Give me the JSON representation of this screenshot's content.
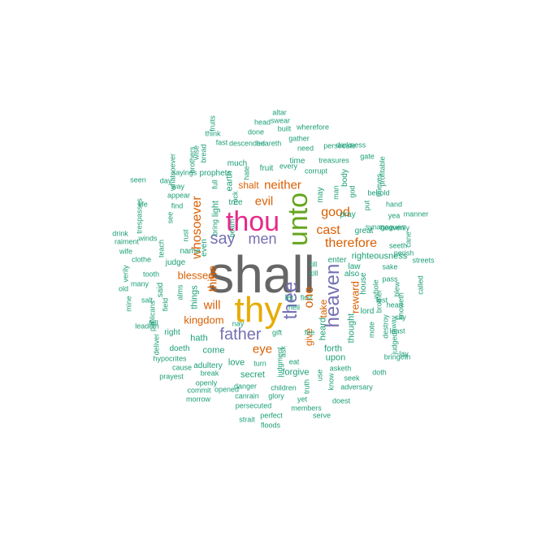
{
  "palette": {
    "c1": "#1b9e77",
    "c2": "#d95f02",
    "c3": "#7570b3",
    "c4": "#e7298a",
    "c5": "#66a61e",
    "c6": "#e6ab02",
    "c7": "#666666"
  },
  "words": [
    {
      "text": "shall",
      "color": "c7",
      "vertical": false
    },
    {
      "text": "thy",
      "color": "c6",
      "vertical": false
    },
    {
      "text": "thou",
      "color": "c4",
      "vertical": false
    },
    {
      "text": "unto",
      "color": "c5",
      "vertical": true
    },
    {
      "text": "thee",
      "color": "c3",
      "vertical": true
    },
    {
      "text": "heaven",
      "color": "c3",
      "vertical": true
    },
    {
      "text": "father",
      "color": "c3",
      "vertical": false
    },
    {
      "text": "say",
      "color": "c3",
      "vertical": false
    },
    {
      "text": "men",
      "color": "c3",
      "vertical": false
    },
    {
      "text": "therefore",
      "color": "c2",
      "vertical": false
    },
    {
      "text": "whosoever",
      "color": "c2",
      "vertical": true
    },
    {
      "text": "one",
      "color": "c2",
      "vertical": true
    },
    {
      "text": "good",
      "color": "c2",
      "vertical": false
    },
    {
      "text": "cast",
      "color": "c2",
      "vertical": false
    },
    {
      "text": "neither",
      "color": "c2",
      "vertical": false
    },
    {
      "text": "evil",
      "color": "c2",
      "vertical": false
    },
    {
      "text": "eye",
      "color": "c2",
      "vertical": false
    },
    {
      "text": "will",
      "color": "c2",
      "vertical": false
    },
    {
      "text": "thine",
      "color": "c2",
      "vertical": true
    },
    {
      "text": "blessed",
      "color": "c2",
      "vertical": false
    },
    {
      "text": "kingdom",
      "color": "c2",
      "vertical": false
    },
    {
      "text": "reward",
      "color": "c2",
      "vertical": true
    },
    {
      "text": "give",
      "color": "c2",
      "vertical": true
    },
    {
      "text": "take",
      "color": "c2",
      "vertical": true
    },
    {
      "text": "shalt",
      "color": "c2",
      "vertical": false
    },
    {
      "text": "forth",
      "color": "c1",
      "vertical": false
    },
    {
      "text": "upon",
      "color": "c1",
      "vertical": false
    },
    {
      "text": "thought",
      "color": "c1",
      "vertical": true
    },
    {
      "text": "heard",
      "color": "c1",
      "vertical": true
    },
    {
      "text": "hath",
      "color": "c1",
      "vertical": false
    },
    {
      "text": "come",
      "color": "c1",
      "vertical": false
    },
    {
      "text": "love",
      "color": "c1",
      "vertical": false
    },
    {
      "text": "secret",
      "color": "c1",
      "vertical": false
    },
    {
      "text": "forgive",
      "color": "c1",
      "vertical": false
    },
    {
      "text": "righteousness",
      "color": "c1",
      "vertical": false
    },
    {
      "text": "things",
      "color": "c1",
      "vertical": true
    },
    {
      "text": "light",
      "color": "c1",
      "vertical": true
    },
    {
      "text": "earth",
      "color": "c1",
      "vertical": true
    },
    {
      "text": "tree",
      "color": "c1",
      "vertical": false
    },
    {
      "text": "fruit",
      "color": "c1",
      "vertical": false
    },
    {
      "text": "time",
      "color": "c1",
      "vertical": false
    },
    {
      "text": "pray",
      "color": "c1",
      "vertical": false
    },
    {
      "text": "great",
      "color": "c1",
      "vertical": false
    },
    {
      "text": "lord",
      "color": "c1",
      "vertical": false
    },
    {
      "text": "let",
      "color": "c1",
      "vertical": false
    },
    {
      "text": "may",
      "color": "c1",
      "vertical": true
    },
    {
      "text": "much",
      "color": "c1",
      "vertical": false
    },
    {
      "text": "prophets",
      "color": "c1",
      "vertical": false
    },
    {
      "text": "judge",
      "color": "c1",
      "vertical": false
    },
    {
      "text": "name",
      "color": "c1",
      "vertical": false
    },
    {
      "text": "even",
      "color": "c1",
      "vertical": true
    },
    {
      "text": "said",
      "color": "c1",
      "vertical": true
    },
    {
      "text": "right",
      "color": "c1",
      "vertical": false
    },
    {
      "text": "doeth",
      "color": "c1",
      "vertical": false
    },
    {
      "text": "adultery",
      "color": "c1",
      "vertical": false
    },
    {
      "text": "enter",
      "color": "c1",
      "vertical": false
    },
    {
      "text": "law",
      "color": "c1",
      "vertical": false
    },
    {
      "text": "also",
      "color": "c1",
      "vertical": false
    },
    {
      "text": "house",
      "color": "c1",
      "vertical": true
    },
    {
      "text": "body",
      "color": "c1",
      "vertical": true
    },
    {
      "text": "corrupt",
      "color": "c1",
      "vertical": false
    },
    {
      "text": "every",
      "color": "c1",
      "vertical": false
    },
    {
      "text": "man",
      "color": "c1",
      "vertical": true
    },
    {
      "text": "god",
      "color": "c1",
      "vertical": true
    },
    {
      "text": "put",
      "color": "c1",
      "vertical": true
    },
    {
      "text": "hand",
      "color": "c1",
      "vertical": false
    },
    {
      "text": "yea",
      "color": "c1",
      "vertical": false
    },
    {
      "text": "lest",
      "color": "c1",
      "vertical": false
    },
    {
      "text": "whole",
      "color": "c1",
      "vertical": true
    },
    {
      "text": "brother",
      "color": "c1",
      "vertical": true
    },
    {
      "text": "heart",
      "color": "c1",
      "vertical": false
    },
    {
      "text": "away",
      "color": "c1",
      "vertical": true
    },
    {
      "text": "destroy",
      "color": "c1",
      "vertical": true
    },
    {
      "text": "mote",
      "color": "c1",
      "vertical": true
    },
    {
      "text": "ask",
      "color": "c1",
      "vertical": true
    },
    {
      "text": "seek",
      "color": "c1",
      "vertical": false
    },
    {
      "text": "asketh",
      "color": "c1",
      "vertical": false
    },
    {
      "text": "adversary",
      "color": "c1",
      "vertical": false
    },
    {
      "text": "doth",
      "color": "c1",
      "vertical": false
    },
    {
      "text": "doest",
      "color": "c1",
      "vertical": false
    },
    {
      "text": "members",
      "color": "c1",
      "vertical": false
    },
    {
      "text": "serve",
      "color": "c1",
      "vertical": false
    },
    {
      "text": "perfect",
      "color": "c1",
      "vertical": false
    },
    {
      "text": "floods",
      "color": "c1",
      "vertical": false
    },
    {
      "text": "strait",
      "color": "c1",
      "vertical": false
    },
    {
      "text": "persecuted",
      "color": "c1",
      "vertical": false
    },
    {
      "text": "canrain",
      "color": "c1",
      "vertical": false
    },
    {
      "text": "glory",
      "color": "c1",
      "vertical": false
    },
    {
      "text": "yet",
      "color": "c1",
      "vertical": false
    },
    {
      "text": "children",
      "color": "c1",
      "vertical": false
    },
    {
      "text": "danger",
      "color": "c1",
      "vertical": false
    },
    {
      "text": "turn",
      "color": "c1",
      "vertical": false
    },
    {
      "text": "eat",
      "color": "c1",
      "vertical": false
    },
    {
      "text": "gift",
      "color": "c1",
      "vertical": false
    },
    {
      "text": "fire",
      "color": "c1",
      "vertical": false
    },
    {
      "text": "hell",
      "color": "c1",
      "vertical": false
    },
    {
      "text": "first",
      "color": "c1",
      "vertical": false
    },
    {
      "text": "till",
      "color": "c1",
      "vertical": false
    },
    {
      "text": "kill",
      "color": "c1",
      "vertical": false
    },
    {
      "text": "nay",
      "color": "c1",
      "vertical": false
    },
    {
      "text": "break",
      "color": "c1",
      "vertical": false
    },
    {
      "text": "cause",
      "color": "c1",
      "vertical": false
    },
    {
      "text": "hypocrites",
      "color": "c1",
      "vertical": false
    },
    {
      "text": "prayest",
      "color": "c1",
      "vertical": false
    },
    {
      "text": "openly",
      "color": "c1",
      "vertical": false
    },
    {
      "text": "commit",
      "color": "c1",
      "vertical": false
    },
    {
      "text": "morrow",
      "color": "c1",
      "vertical": false
    },
    {
      "text": "opened",
      "color": "c1",
      "vertical": false
    },
    {
      "text": "judgment",
      "color": "c1",
      "vertical": true
    },
    {
      "text": "truth",
      "color": "c1",
      "vertical": true
    },
    {
      "text": "use",
      "color": "c1",
      "vertical": true
    },
    {
      "text": "know",
      "color": "c1",
      "vertical": true
    },
    {
      "text": "deliver",
      "color": "c1",
      "vertical": true
    },
    {
      "text": "fell",
      "color": "c1",
      "vertical": false
    },
    {
      "text": "salt",
      "color": "c1",
      "vertical": false
    },
    {
      "text": "many",
      "color": "c1",
      "vertical": false
    },
    {
      "text": "tooth",
      "color": "c1",
      "vertical": false
    },
    {
      "text": "old",
      "color": "c1",
      "vertical": false
    },
    {
      "text": "mine",
      "color": "c1",
      "vertical": true
    },
    {
      "text": "leadeth",
      "color": "c1",
      "vertical": false
    },
    {
      "text": "publicans",
      "color": "c1",
      "vertical": true
    },
    {
      "text": "field",
      "color": "c1",
      "vertical": true
    },
    {
      "text": "alms",
      "color": "c1",
      "vertical": true
    },
    {
      "text": "verily",
      "color": "c1",
      "vertical": true
    },
    {
      "text": "clothe",
      "color": "c1",
      "vertical": false
    },
    {
      "text": "wife",
      "color": "c1",
      "vertical": false
    },
    {
      "text": "raiment",
      "color": "c1",
      "vertical": false
    },
    {
      "text": "drink",
      "color": "c1",
      "vertical": false
    },
    {
      "text": "winds",
      "color": "c1",
      "vertical": false
    },
    {
      "text": "teach",
      "color": "c1",
      "vertical": true
    },
    {
      "text": "trespasses",
      "color": "c1",
      "vertical": true
    },
    {
      "text": "rust",
      "color": "c1",
      "vertical": true
    },
    {
      "text": "see",
      "color": "c1",
      "vertical": true
    },
    {
      "text": "life",
      "color": "c1",
      "vertical": false
    },
    {
      "text": "find",
      "color": "c1",
      "vertical": false
    },
    {
      "text": "appear",
      "color": "c1",
      "vertical": false
    },
    {
      "text": "way",
      "color": "c1",
      "vertical": false
    },
    {
      "text": "day",
      "color": "c1",
      "vertical": false
    },
    {
      "text": "seen",
      "color": "c1",
      "vertical": false
    },
    {
      "text": "whatsoever",
      "color": "c1",
      "vertical": true
    },
    {
      "text": "sayings",
      "color": "c1",
      "vertical": false
    },
    {
      "text": "brothers",
      "color": "c1",
      "vertical": true
    },
    {
      "text": "wise",
      "color": "c1",
      "vertical": true
    },
    {
      "text": "bread",
      "color": "c1",
      "vertical": true
    },
    {
      "text": "full",
      "color": "c1",
      "vertical": true
    },
    {
      "text": "rock",
      "color": "c1",
      "vertical": true
    },
    {
      "text": "beam",
      "color": "c1",
      "vertical": true
    },
    {
      "text": "bring",
      "color": "c1",
      "vertical": true
    },
    {
      "text": "hate",
      "color": "c1",
      "vertical": true
    },
    {
      "text": "fruits",
      "color": "c1",
      "vertical": true
    },
    {
      "text": "think",
      "color": "c1",
      "vertical": false
    },
    {
      "text": "fast",
      "color": "c1",
      "vertical": false
    },
    {
      "text": "descended",
      "color": "c1",
      "vertical": false
    },
    {
      "text": "heareth",
      "color": "c1",
      "vertical": false
    },
    {
      "text": "done",
      "color": "c1",
      "vertical": false
    },
    {
      "text": "head",
      "color": "c1",
      "vertical": false
    },
    {
      "text": "altar",
      "color": "c1",
      "vertical": false
    },
    {
      "text": "swear",
      "color": "c1",
      "vertical": false
    },
    {
      "text": "built",
      "color": "c1",
      "vertical": false
    },
    {
      "text": "wherefore",
      "color": "c1",
      "vertical": false
    },
    {
      "text": "gather",
      "color": "c1",
      "vertical": false
    },
    {
      "text": "need",
      "color": "c1",
      "vertical": false
    },
    {
      "text": "treasures",
      "color": "c1",
      "vertical": false
    },
    {
      "text": "persecute",
      "color": "c1",
      "vertical": false
    },
    {
      "text": "darkness",
      "color": "c1",
      "vertical": false
    },
    {
      "text": "gate",
      "color": "c1",
      "vertical": false
    },
    {
      "text": "thieves",
      "color": "c1",
      "vertical": true
    },
    {
      "text": "profitable",
      "color": "c1",
      "vertical": true
    },
    {
      "text": "behold",
      "color": "c1",
      "vertical": false
    },
    {
      "text": "manner",
      "color": "c1",
      "vertical": false
    },
    {
      "text": "synagogues",
      "color": "c1",
      "vertical": false
    },
    {
      "text": "heavenly",
      "color": "c1",
      "vertical": false
    },
    {
      "text": "cane",
      "color": "c1",
      "vertical": true
    },
    {
      "text": "seeth",
      "color": "c1",
      "vertical": false
    },
    {
      "text": "perish",
      "color": "c1",
      "vertical": false
    },
    {
      "text": "streets",
      "color": "c1",
      "vertical": false
    },
    {
      "text": "sake",
      "color": "c1",
      "vertical": false
    },
    {
      "text": "pass",
      "color": "c1",
      "vertical": false
    },
    {
      "text": "blew",
      "color": "c1",
      "vertical": true
    },
    {
      "text": "called",
      "color": "c1",
      "vertical": true
    },
    {
      "text": "knoweth",
      "color": "c1",
      "vertical": true
    },
    {
      "text": "city",
      "color": "c1",
      "vertical": false
    },
    {
      "text": "judged",
      "color": "c1",
      "vertical": true
    },
    {
      "text": "least",
      "color": "c1",
      "vertical": false
    },
    {
      "text": "bringeth",
      "color": "c1",
      "vertical": false
    },
    {
      "text": "lay",
      "color": "c1",
      "vertical": false
    },
    {
      "text": "offend",
      "color": "c1",
      "vertical": false
    },
    {
      "text": "steal",
      "color": "c1",
      "vertical": true
    },
    {
      "text": "beat",
      "color": "c1",
      "vertical": true
    }
  ]
}
